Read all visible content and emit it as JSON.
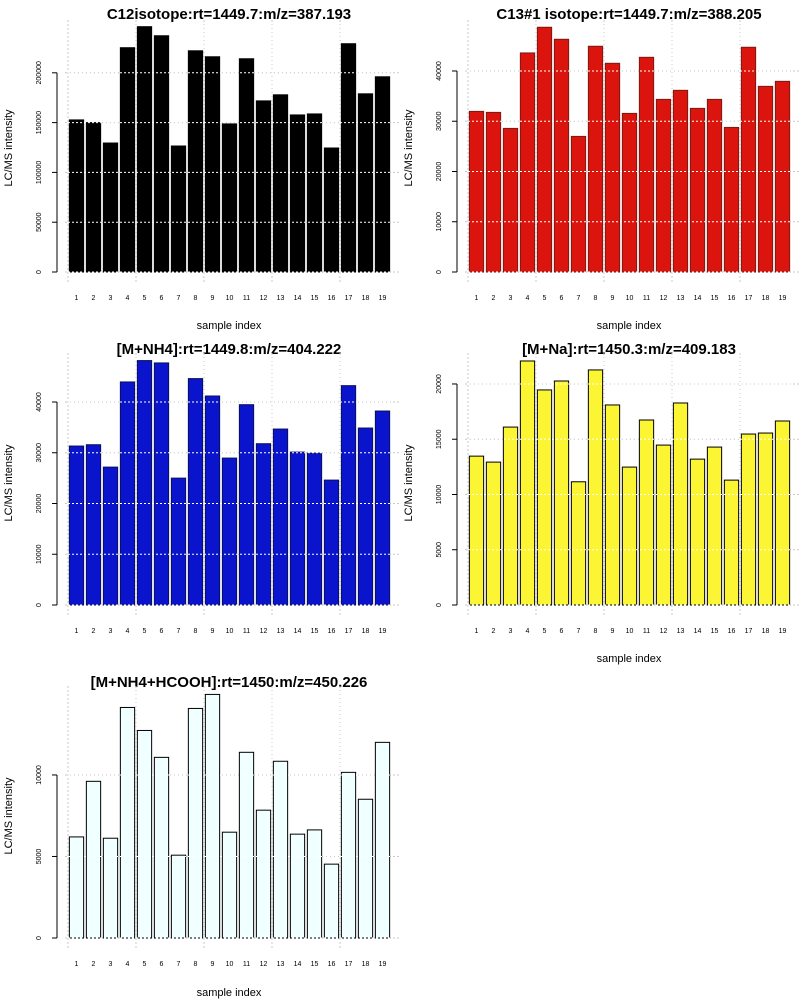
{
  "chart_data": [
    {
      "type": "bar",
      "title": "C12isotope:rt=1449.7:m/z=387.193",
      "xlabel": "sample index",
      "ylabel": "LC/MS intensity",
      "categories": [
        "1",
        "2",
        "3",
        "4",
        "5",
        "6",
        "7",
        "8",
        "9",
        "10",
        "11",
        "12",
        "13",
        "14",
        "15",
        "16",
        "17",
        "18",
        "19"
      ],
      "values": [
        152700,
        150000,
        129500,
        225200,
        246300,
        237200,
        126500,
        222100,
        216100,
        148700,
        214100,
        171800,
        177900,
        157700,
        158700,
        124500,
        229200,
        178900,
        196000
      ],
      "yticks": [
        0,
        50000,
        100000,
        150000,
        200000
      ],
      "ytick_labels": [
        "0",
        "50000",
        "100000",
        "150000",
        "200000"
      ],
      "ylim": [
        0,
        248000
      ],
      "grid": true,
      "bar_color": "#000000",
      "border_color": "#000000"
    },
    {
      "type": "bar",
      "title": "C13#1 isotope:rt=1449.7:m/z=388.205",
      "xlabel": "sample index",
      "ylabel": "LC/MS intensity",
      "categories": [
        "1",
        "2",
        "3",
        "4",
        "5",
        "6",
        "7",
        "8",
        "9",
        "10",
        "11",
        "12",
        "13",
        "14",
        "15",
        "16",
        "17",
        "18",
        "19"
      ],
      "values": [
        31960,
        31760,
        28570,
        43590,
        48700,
        46310,
        26980,
        44920,
        41530,
        31560,
        42720,
        34350,
        36150,
        32560,
        34350,
        28770,
        44720,
        36940,
        37940
      ],
      "yticks": [
        0,
        10000,
        20000,
        30000,
        40000
      ],
      "ytick_labels": [
        "0",
        "10000",
        "20000",
        "30000",
        "40000"
      ],
      "ylim": [
        0,
        49150
      ],
      "grid": true,
      "bar_color": "#dc140e",
      "border_color": "#7a1a14"
    },
    {
      "type": "bar",
      "title": "[M+NH4]:rt=1449.8:m/z=404.222",
      "xlabel": "",
      "ylabel": "LC/MS intensity",
      "categories": [
        "1",
        "2",
        "3",
        "4",
        "5",
        "6",
        "7",
        "8",
        "9",
        "10",
        "11",
        "12",
        "13",
        "14",
        "15",
        "16",
        "17",
        "18",
        "19"
      ],
      "values": [
        31320,
        31580,
        27170,
        43950,
        48160,
        47700,
        25000,
        44610,
        41180,
        28950,
        39470,
        31780,
        34670,
        30130,
        29930,
        24610,
        43220,
        34870,
        38220
      ],
      "yticks": [
        0,
        10000,
        20000,
        30000,
        40000
      ],
      "ytick_labels": [
        "0",
        "10000",
        "20000",
        "30000",
        "40000"
      ],
      "ylim": [
        0,
        48670
      ],
      "grid": true,
      "bar_color": "#0a14cc",
      "border_color": "#0a0f5a"
    },
    {
      "type": "bar",
      "title": "[M+Na]:rt=1450.3:m/z=409.183",
      "xlabel": "sample index",
      "ylabel": "LC/MS intensity",
      "categories": [
        "1",
        "2",
        "3",
        "4",
        "5",
        "6",
        "7",
        "8",
        "9",
        "10",
        "11",
        "12",
        "13",
        "14",
        "15",
        "16",
        "17",
        "18",
        "19"
      ],
      "values": [
        13470,
        12930,
        16100,
        22080,
        19460,
        20270,
        11150,
        21270,
        18100,
        12480,
        16740,
        14470,
        18280,
        13200,
        14290,
        11300,
        15470,
        15560,
        16650
      ],
      "yticks": [
        0,
        5000,
        10000,
        15000,
        20000
      ],
      "ytick_labels": [
        "0",
        "5000",
        "10000",
        "15000",
        "20000"
      ],
      "ylim": [
        0,
        22350
      ],
      "grid": true,
      "bar_color": "#fbf534",
      "border_color": "#000000"
    },
    {
      "type": "bar",
      "title": "[M+NH4+HCOOH]:rt=1450:m/z=450.226",
      "xlabel": "sample index",
      "ylabel": "LC/MS intensity",
      "categories": [
        "1",
        "2",
        "3",
        "4",
        "5",
        "6",
        "7",
        "8",
        "9",
        "10",
        "11",
        "12",
        "13",
        "14",
        "15",
        "16",
        "17",
        "18",
        "19"
      ],
      "values": [
        6200,
        9610,
        6120,
        14140,
        12730,
        11080,
        5080,
        14080,
        14940,
        6490,
        11390,
        7840,
        10840,
        6370,
        6630,
        4530,
        10160,
        8510,
        12000
      ],
      "yticks": [
        0,
        5000,
        10000
      ],
      "ytick_labels": [
        "0",
        "5000",
        "10000"
      ],
      "ylim": [
        0,
        15150
      ],
      "grid": true,
      "bar_color": "#f0ffff",
      "border_color": "#000000"
    }
  ]
}
